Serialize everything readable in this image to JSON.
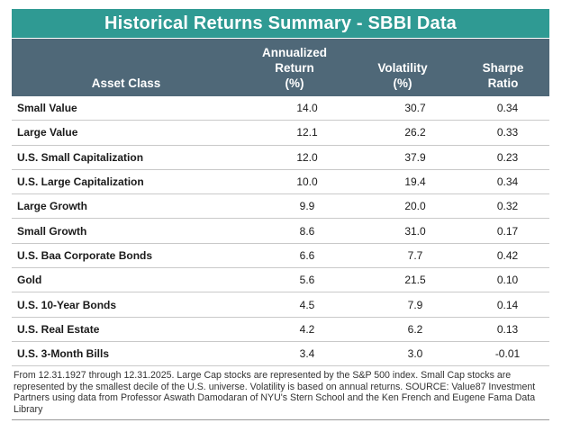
{
  "title": "Historical Returns Summary - SBBI Data",
  "headers": {
    "asset_class": "Asset Class",
    "annualized_return": [
      "Annualized",
      "Return",
      "(%)"
    ],
    "volatility": [
      "Volatility",
      "(%)"
    ],
    "sharpe_ratio": [
      "Sharpe",
      "Ratio"
    ]
  },
  "rows": [
    {
      "asset": "Small Value",
      "ret": "14.0",
      "vol": "30.7",
      "sharpe": "0.34"
    },
    {
      "asset": "Large Value",
      "ret": "12.1",
      "vol": "26.2",
      "sharpe": "0.33"
    },
    {
      "asset": "U.S. Small Capitalization",
      "ret": "12.0",
      "vol": "37.9",
      "sharpe": "0.23"
    },
    {
      "asset": "U.S. Large Capitalization",
      "ret": "10.0",
      "vol": "19.4",
      "sharpe": "0.34"
    },
    {
      "asset": "Large Growth",
      "ret": "9.9",
      "vol": "20.0",
      "sharpe": "0.32"
    },
    {
      "asset": "Small Growth",
      "ret": "8.6",
      "vol": "31.0",
      "sharpe": "0.17"
    },
    {
      "asset": "U.S. Baa Corporate Bonds",
      "ret": "6.6",
      "vol": "7.7",
      "sharpe": "0.42"
    },
    {
      "asset": "Gold",
      "ret": "5.6",
      "vol": "21.5",
      "sharpe": "0.10"
    },
    {
      "asset": "U.S. 10-Year Bonds",
      "ret": "4.5",
      "vol": "7.9",
      "sharpe": "0.14"
    },
    {
      "asset": "U.S. Real Estate",
      "ret": "4.2",
      "vol": "6.2",
      "sharpe": "0.13"
    },
    {
      "asset": "U.S. 3-Month Bills",
      "ret": "3.4",
      "vol": "3.0",
      "sharpe": "-0.01"
    }
  ],
  "footnote": "From 12.31.1927 through 12.31.2025. Large Cap stocks are represented by the S&P 500 index. Small Cap stocks are represented by the smallest decile of the U.S. universe. Volatility is based on annual returns. SOURCE: Value87 Investment Partners using data from Professor Aswath Damodaran of NYU's Stern School and the Ken French and Eugene Fama Data Library",
  "colors": {
    "title_bg": "#2f9a93",
    "header_bg": "#4f6878"
  }
}
